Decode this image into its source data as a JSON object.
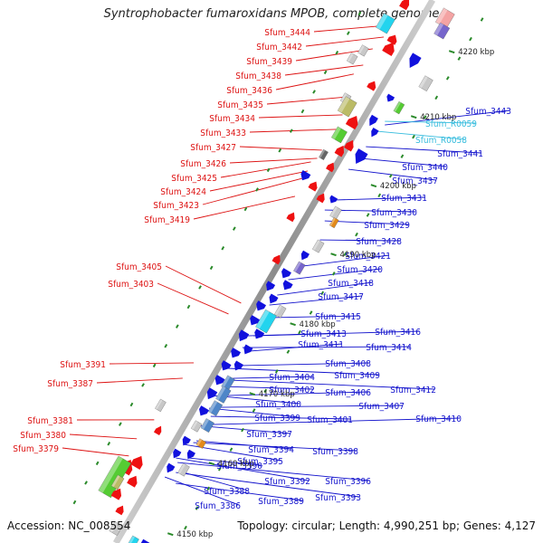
{
  "title": "Syntrophobacter fumaroxidans MPOB, complete genome",
  "accession_text": "Accession: NC_008554",
  "info_text": "Topology: circular; Length: 4,990,251 bp; Genes: 4,127",
  "colors": {
    "left_label": "#dd1111",
    "right_label": "#1111cc",
    "rna_label": "#33bbdd",
    "backbone": "#999999"
  },
  "kbp_marks": [
    "4150 kbp",
    "4160 kbp",
    "4170 kbp",
    "4180 kbp",
    "4190 kbp",
    "4200 kbp",
    "4210 kbp",
    "4220 kbp"
  ],
  "left_labels": [
    "Sfum_3444",
    "Sfum_3442",
    "Sfum_3439",
    "Sfum_3438",
    "Sfum_3436",
    "Sfum_3435",
    "Sfum_3434",
    "Sfum_3433",
    "Sfum_3427",
    "Sfum_3426",
    "Sfum_3425",
    "Sfum_3424",
    "Sfum_3423",
    "Sfum_3419",
    "Sfum_3405",
    "Sfum_3403",
    "Sfum_3391",
    "Sfum_3387",
    "Sfum_3381",
    "Sfum_3380",
    "Sfum_3379"
  ],
  "right_labels": [
    "Sfum_3443",
    "Sfum_R0059",
    "Sfum_R0058",
    "Sfum_3441",
    "Sfum_3440",
    "Sfum_3437",
    "Sfum_3431",
    "Sfum_3430",
    "Sfum_3429",
    "Sfum_3428",
    "Sfum_3421",
    "Sfum_3420",
    "Sfum_3418",
    "Sfum_3417",
    "Sfum_3415",
    "Sfum_3416",
    "Sfum_3413",
    "Sfum_3414",
    "Sfum_3411",
    "Sfum_3408",
    "Sfum_3409",
    "Sfum_3404",
    "Sfum_3412",
    "Sfum_3402",
    "Sfum_3406",
    "Sfum_3400",
    "Sfum_3407",
    "Sfum_3399",
    "Sfum_3401",
    "Sfum_3410",
    "Sfum_3397",
    "Sfum_3394",
    "Sfum_3398",
    "Sfum_3395",
    "Sfum_3390",
    "Sfum_3392",
    "Sfum_3396",
    "Sfum_3388",
    "Sfum_3393",
    "Sfum_3386",
    "Sfum_3389"
  ]
}
